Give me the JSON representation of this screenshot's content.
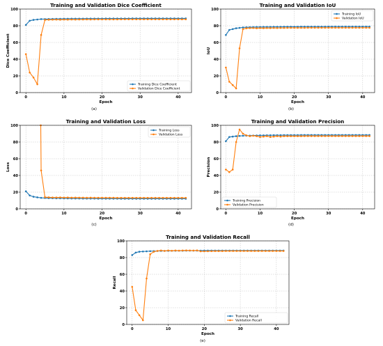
{
  "chart_data": [
    {
      "type": "line",
      "caption": "(a)",
      "title": "Training and Validation Dice Coefficient",
      "xlabel": "Epoch",
      "ylabel": "Dice Coefficient",
      "xlim": [
        -1.5,
        43.5
      ],
      "ylim": [
        0,
        100
      ],
      "xticks": [
        "0",
        "10",
        "20",
        "30",
        "40"
      ],
      "yticks": [
        "0",
        "20",
        "40",
        "60",
        "80",
        "100"
      ],
      "grid": true,
      "legend": "lower-right",
      "series": [
        {
          "name": "Training Dice Coefficient",
          "color": "#1f77b4",
          "values": [
            81,
            86,
            87,
            87.5,
            88,
            88,
            88.1,
            88.2,
            88.3,
            88.3,
            88.4,
            88.4,
            88.5,
            88.5,
            88.5,
            88.5,
            88.6,
            88.6,
            88.6,
            88.6,
            88.6,
            88.7,
            88.7,
            88.7,
            88.7,
            88.7,
            88.7,
            88.7,
            88.8,
            88.8,
            88.8,
            88.8,
            88.8,
            88.8,
            88.8,
            88.8,
            88.8,
            88.8,
            88.8,
            88.8,
            88.8,
            88.8,
            88.8
          ]
        },
        {
          "name": "Validation Dice Coefficient",
          "color": "#ff7f0e",
          "values": [
            46,
            24,
            18,
            10,
            69,
            87,
            87.2,
            87.3,
            87.4,
            87.2,
            87.4,
            87.3,
            87.5,
            87.4,
            87.5,
            87.5,
            87.6,
            87.5,
            87.6,
            87.6,
            87.6,
            87.6,
            87.6,
            87.6,
            87.6,
            87.7,
            87.7,
            87.7,
            87.7,
            87.7,
            87.7,
            87.7,
            87.7,
            87.7,
            87.7,
            87.7,
            87.7,
            87.7,
            87.7,
            87.7,
            87.7,
            87.7,
            87.7
          ]
        }
      ]
    },
    {
      "type": "line",
      "caption": "(b)",
      "title": "Training and Validation IoU",
      "xlabel": "Epoch",
      "ylabel": "IoU",
      "xlim": [
        -1.5,
        43.5
      ],
      "ylim": [
        0,
        100
      ],
      "xticks": [
        "0",
        "10",
        "20",
        "30",
        "40"
      ],
      "yticks": [
        "0",
        "20",
        "40",
        "60",
        "80",
        "100"
      ],
      "grid": true,
      "legend": "upper-right",
      "series": [
        {
          "name": "Training IoU",
          "color": "#1f77b4",
          "values": [
            69,
            75,
            76,
            77,
            77.5,
            78,
            78.2,
            78.3,
            78.4,
            78.5,
            78.5,
            78.6,
            78.6,
            78.6,
            78.7,
            78.7,
            78.7,
            78.8,
            78.8,
            78.8,
            78.8,
            78.8,
            78.9,
            78.9,
            78.9,
            78.9,
            78.9,
            78.9,
            78.9,
            78.9,
            79,
            79,
            79,
            79,
            79,
            79,
            79,
            79,
            79,
            79,
            79,
            79,
            79
          ]
        },
        {
          "name": "Validation IoU",
          "color": "#ff7f0e",
          "values": [
            30,
            13,
            9,
            5,
            53,
            76,
            77,
            77.2,
            77.3,
            77,
            77.2,
            77.1,
            77.3,
            77.2,
            77.4,
            77.3,
            77.4,
            77.4,
            77.5,
            77.5,
            77.5,
            77.5,
            77.5,
            77.5,
            77.6,
            77.6,
            77.6,
            77.6,
            77.6,
            77.6,
            77.6,
            77.6,
            77.6,
            77.6,
            77.6,
            77.6,
            77.6,
            77.6,
            77.6,
            77.6,
            77.6,
            77.6,
            77.6
          ]
        }
      ]
    },
    {
      "type": "line",
      "caption": "(c)",
      "title": "Training and Validation Loss",
      "xlabel": "Epoch",
      "ylabel": "Loss",
      "xlim": [
        -1.5,
        43.5
      ],
      "ylim": [
        0,
        100
      ],
      "xticks": [
        "0",
        "10",
        "20",
        "30",
        "40"
      ],
      "yticks": [
        "0",
        "20",
        "40",
        "60",
        "80",
        "100"
      ],
      "grid": true,
      "legend": "upper-right",
      "series": [
        {
          "name": "Training Loss",
          "color": "#1f77b4",
          "values": [
            21,
            16,
            14.5,
            13.8,
            13.2,
            13,
            12.8,
            12.7,
            12.6,
            12.6,
            12.5,
            12.5,
            12.4,
            12.4,
            12.4,
            12.3,
            12.3,
            12.3,
            12.3,
            12.2,
            12.2,
            12.2,
            12.2,
            12.2,
            12.2,
            12.1,
            12.1,
            12.1,
            12.1,
            12.1,
            12.1,
            12.1,
            12.1,
            12.1,
            12.1,
            12.1,
            12.1,
            12.1,
            12.1,
            12.1,
            12.1,
            12.1,
            12.1
          ]
        },
        {
          "name": "Validation Loss",
          "color": "#ff7f0e",
          "values": [
            null,
            null,
            null,
            null,
            46,
            14,
            13.8,
            13.6,
            13.6,
            13.7,
            13.5,
            13.6,
            13.4,
            13.5,
            13.4,
            13.4,
            13.3,
            13.4,
            13.3,
            13.3,
            13.3,
            13.3,
            13.3,
            13.3,
            13.2,
            13.2,
            13.2,
            13.2,
            13.2,
            13.2,
            13.2,
            13.2,
            13.2,
            13.2,
            13.2,
            13.2,
            13.2,
            13.2,
            13.2,
            13.2,
            13.2,
            13.2,
            13.2
          ]
        }
      ]
    },
    {
      "type": "line",
      "caption": "(d)",
      "title": "Training and Validation Precision",
      "xlabel": "Epoch",
      "ylabel": "Precision",
      "xlim": [
        -1.5,
        43.5
      ],
      "ylim": [
        0,
        100
      ],
      "xticks": [
        "0",
        "10",
        "20",
        "30",
        "40"
      ],
      "yticks": [
        "0",
        "20",
        "40",
        "60",
        "80",
        "100"
      ],
      "grid": true,
      "legend": "lower-left",
      "series": [
        {
          "name": "Training Precision",
          "color": "#1f77b4",
          "values": [
            81,
            86,
            86.5,
            87,
            87.3,
            87.5,
            87.6,
            87.7,
            87.8,
            87.9,
            88,
            88,
            88.1,
            88.1,
            88.2,
            88.2,
            88.2,
            88.3,
            88.3,
            88.3,
            88.3,
            88.3,
            88.4,
            88.4,
            88.4,
            88.4,
            88.4,
            88.4,
            88.4,
            88.4,
            88.4,
            88.4,
            88.4,
            88.4,
            88.4,
            88.4,
            88.4,
            88.4,
            88.4,
            88.4,
            88.4,
            88.4,
            88.4
          ]
        },
        {
          "name": "Validation Precision",
          "color": "#ff7f0e",
          "values": [
            47,
            44,
            47,
            80,
            95,
            90,
            88,
            87,
            87.5,
            87,
            86,
            86.5,
            87,
            86,
            86.5,
            87,
            86.5,
            87,
            87,
            87,
            87,
            87,
            87,
            87.1,
            87.1,
            87.1,
            87.1,
            87.1,
            87.1,
            87.1,
            87.1,
            87.1,
            87.1,
            87.1,
            87.1,
            87.1,
            87.1,
            87.1,
            87.1,
            87.1,
            87.1,
            87.1,
            87.1
          ]
        }
      ]
    },
    {
      "type": "line",
      "caption": "(e)",
      "title": "Training and Validation Recall",
      "xlabel": "Epoch",
      "ylabel": "Recall",
      "xlim": [
        -1.5,
        43.5
      ],
      "ylim": [
        0,
        100
      ],
      "xticks": [
        "0",
        "10",
        "20",
        "30",
        "40"
      ],
      "yticks": [
        "0",
        "20",
        "40",
        "60",
        "80",
        "100"
      ],
      "grid": true,
      "legend": "lower-right",
      "series": [
        {
          "name": "Training Recall",
          "color": "#1f77b4",
          "values": [
            83,
            86,
            87,
            87.3,
            87.5,
            87.7,
            87.8,
            87.9,
            88,
            88,
            88.1,
            88.1,
            88.2,
            88.2,
            88.2,
            88.3,
            88.3,
            88.3,
            88.3,
            88.3,
            88.4,
            88.4,
            88.4,
            88.4,
            88.4,
            88.4,
            88.4,
            88.4,
            88.4,
            88.4,
            88.4,
            88.4,
            88.4,
            88.4,
            88.4,
            88.4,
            88.4,
            88.4,
            88.4,
            88.4,
            88.4,
            88.4,
            88.4
          ]
        },
        {
          "name": "Validation Recall",
          "color": "#ff7f0e",
          "values": [
            45,
            17,
            11,
            5,
            55,
            84,
            87,
            88,
            88.5,
            88,
            88.5,
            88.2,
            88.5,
            88.3,
            88.5,
            88.6,
            88.5,
            88.4,
            88.6,
            87.5,
            87.5,
            87.6,
            87.7,
            87.8,
            87.8,
            87.8,
            87.9,
            87.9,
            87.9,
            87.9,
            87.9,
            87.9,
            87.9,
            87.9,
            87.9,
            87.9,
            87.9,
            87.9,
            87.9,
            87.9,
            87.9,
            87.9,
            87.9
          ]
        }
      ]
    }
  ]
}
